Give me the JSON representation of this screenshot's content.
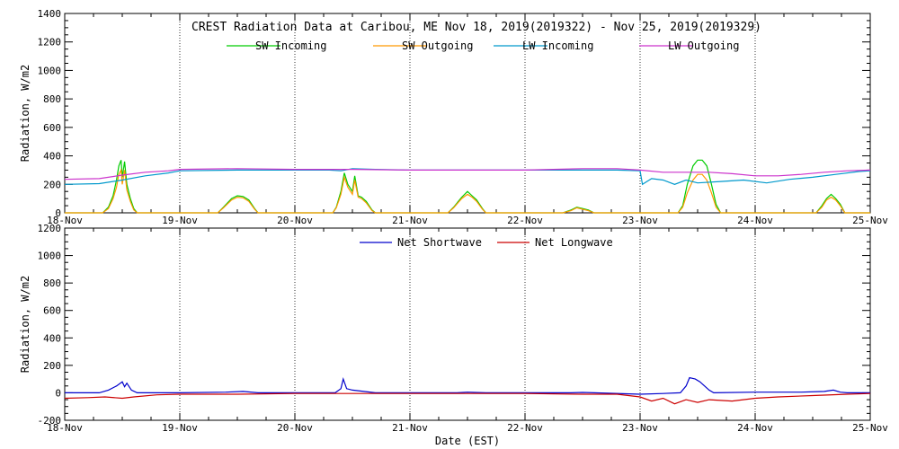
{
  "chart_data": [
    {
      "type": "line",
      "title": "CREST Radiation Data at Caribou, ME   Nov 18, 2019(2019322) - Nov 25, 2019(2019329)",
      "ylabel": "Radiation, W/m2",
      "xlabel": "",
      "ylim": [
        0,
        1400
      ],
      "yticks": [
        0,
        200,
        400,
        600,
        800,
        1000,
        1200,
        1400
      ],
      "xlim": [
        0,
        7
      ],
      "xtick_labels": [
        "18-Nov",
        "19-Nov",
        "20-Nov",
        "21-Nov",
        "22-Nov",
        "23-Nov",
        "24-Nov",
        "25-Nov"
      ],
      "grid": true,
      "legend_position": "top",
      "series": [
        {
          "name": "SW Incoming",
          "color": "#00cc00",
          "points": [
            [
              0.0,
              0
            ],
            [
              0.33,
              0
            ],
            [
              0.38,
              40
            ],
            [
              0.42,
              120
            ],
            [
              0.45,
              230
            ],
            [
              0.47,
              330
            ],
            [
              0.49,
              370
            ],
            [
              0.5,
              250
            ],
            [
              0.52,
              360
            ],
            [
              0.54,
              200
            ],
            [
              0.57,
              100
            ],
            [
              0.6,
              30
            ],
            [
              0.63,
              0
            ],
            [
              1.0,
              0
            ],
            [
              1.33,
              0
            ],
            [
              1.38,
              40
            ],
            [
              1.45,
              100
            ],
            [
              1.5,
              120
            ],
            [
              1.55,
              115
            ],
            [
              1.6,
              90
            ],
            [
              1.65,
              30
            ],
            [
              1.68,
              0
            ],
            [
              2.33,
              0
            ],
            [
              2.36,
              40
            ],
            [
              2.4,
              150
            ],
            [
              2.43,
              280
            ],
            [
              2.46,
              200
            ],
            [
              2.5,
              150
            ],
            [
              2.52,
              260
            ],
            [
              2.55,
              120
            ],
            [
              2.58,
              110
            ],
            [
              2.62,
              80
            ],
            [
              2.67,
              20
            ],
            [
              2.7,
              0
            ],
            [
              3.33,
              0
            ],
            [
              3.38,
              40
            ],
            [
              3.45,
              110
            ],
            [
              3.5,
              150
            ],
            [
              3.54,
              120
            ],
            [
              3.58,
              90
            ],
            [
              3.63,
              30
            ],
            [
              3.66,
              0
            ],
            [
              4.33,
              0
            ],
            [
              4.4,
              20
            ],
            [
              4.45,
              40
            ],
            [
              4.5,
              30
            ],
            [
              4.55,
              20
            ],
            [
              4.6,
              0
            ],
            [
              5.33,
              0
            ],
            [
              5.37,
              50
            ],
            [
              5.41,
              200
            ],
            [
              5.46,
              330
            ],
            [
              5.5,
              370
            ],
            [
              5.54,
              370
            ],
            [
              5.58,
              330
            ],
            [
              5.62,
              200
            ],
            [
              5.66,
              60
            ],
            [
              5.7,
              0
            ],
            [
              6.53,
              0
            ],
            [
              6.58,
              50
            ],
            [
              6.62,
              100
            ],
            [
              6.66,
              130
            ],
            [
              6.7,
              100
            ],
            [
              6.74,
              60
            ],
            [
              6.78,
              0
            ],
            [
              7.0,
              0
            ]
          ]
        },
        {
          "name": "SW Outgoing",
          "color": "#ff9900",
          "points": [
            [
              0.0,
              0
            ],
            [
              0.33,
              0
            ],
            [
              0.38,
              30
            ],
            [
              0.42,
              100
            ],
            [
              0.45,
              180
            ],
            [
              0.47,
              270
            ],
            [
              0.49,
              300
            ],
            [
              0.5,
              200
            ],
            [
              0.52,
              300
            ],
            [
              0.54,
              160
            ],
            [
              0.57,
              80
            ],
            [
              0.6,
              20
            ],
            [
              0.63,
              0
            ],
            [
              1.0,
              0
            ],
            [
              1.33,
              0
            ],
            [
              1.38,
              35
            ],
            [
              1.45,
              90
            ],
            [
              1.5,
              110
            ],
            [
              1.55,
              105
            ],
            [
              1.6,
              80
            ],
            [
              1.65,
              25
            ],
            [
              1.68,
              0
            ],
            [
              2.33,
              0
            ],
            [
              2.36,
              35
            ],
            [
              2.4,
              130
            ],
            [
              2.43,
              250
            ],
            [
              2.46,
              180
            ],
            [
              2.5,
              130
            ],
            [
              2.52,
              230
            ],
            [
              2.55,
              110
            ],
            [
              2.58,
              100
            ],
            [
              2.62,
              70
            ],
            [
              2.67,
              15
            ],
            [
              2.7,
              0
            ],
            [
              3.33,
              0
            ],
            [
              3.38,
              35
            ],
            [
              3.45,
              100
            ],
            [
              3.5,
              130
            ],
            [
              3.54,
              110
            ],
            [
              3.58,
              80
            ],
            [
              3.63,
              25
            ],
            [
              3.66,
              0
            ],
            [
              4.33,
              0
            ],
            [
              4.4,
              15
            ],
            [
              4.45,
              35
            ],
            [
              4.5,
              25
            ],
            [
              4.55,
              15
            ],
            [
              4.6,
              0
            ],
            [
              5.33,
              0
            ],
            [
              5.37,
              40
            ],
            [
              5.41,
              140
            ],
            [
              5.46,
              230
            ],
            [
              5.5,
              270
            ],
            [
              5.54,
              270
            ],
            [
              5.58,
              230
            ],
            [
              5.62,
              140
            ],
            [
              5.66,
              40
            ],
            [
              5.7,
              0
            ],
            [
              6.53,
              0
            ],
            [
              6.58,
              40
            ],
            [
              6.62,
              90
            ],
            [
              6.66,
              110
            ],
            [
              6.7,
              90
            ],
            [
              6.74,
              50
            ],
            [
              6.78,
              0
            ],
            [
              7.0,
              0
            ]
          ]
        },
        {
          "name": "LW Incoming",
          "color": "#0099cc",
          "points": [
            [
              0.0,
              200
            ],
            [
              0.3,
              205
            ],
            [
              0.5,
              230
            ],
            [
              0.7,
              260
            ],
            [
              0.9,
              280
            ],
            [
              1.0,
              295
            ],
            [
              1.5,
              300
            ],
            [
              2.0,
              300
            ],
            [
              2.3,
              300
            ],
            [
              2.4,
              295
            ],
            [
              2.5,
              310
            ],
            [
              2.7,
              305
            ],
            [
              3.0,
              300
            ],
            [
              3.5,
              300
            ],
            [
              4.0,
              300
            ],
            [
              4.5,
              300
            ],
            [
              4.8,
              300
            ],
            [
              5.0,
              295
            ],
            [
              5.02,
              200
            ],
            [
              5.1,
              240
            ],
            [
              5.2,
              230
            ],
            [
              5.3,
              200
            ],
            [
              5.4,
              230
            ],
            [
              5.5,
              210
            ],
            [
              5.7,
              220
            ],
            [
              5.9,
              230
            ],
            [
              6.1,
              210
            ],
            [
              6.3,
              235
            ],
            [
              6.5,
              250
            ],
            [
              6.7,
              270
            ],
            [
              6.9,
              290
            ],
            [
              7.0,
              295
            ]
          ]
        },
        {
          "name": "LW Outgoing",
          "color": "#cc33cc",
          "points": [
            [
              0.0,
              235
            ],
            [
              0.3,
              240
            ],
            [
              0.5,
              265
            ],
            [
              0.7,
              285
            ],
            [
              0.9,
              295
            ],
            [
              1.0,
              305
            ],
            [
              1.5,
              310
            ],
            [
              2.0,
              305
            ],
            [
              2.5,
              305
            ],
            [
              3.0,
              300
            ],
            [
              3.5,
              300
            ],
            [
              4.0,
              300
            ],
            [
              4.5,
              310
            ],
            [
              4.8,
              310
            ],
            [
              5.0,
              300
            ],
            [
              5.2,
              285
            ],
            [
              5.4,
              285
            ],
            [
              5.6,
              285
            ],
            [
              5.8,
              275
            ],
            [
              6.0,
              260
            ],
            [
              6.2,
              260
            ],
            [
              6.4,
              270
            ],
            [
              6.6,
              285
            ],
            [
              6.8,
              295
            ],
            [
              7.0,
              300
            ]
          ]
        }
      ]
    },
    {
      "type": "line",
      "title": "",
      "ylabel": "Radiation, W/m2",
      "xlabel": "Date (EST)",
      "ylim": [
        -200,
        1200
      ],
      "yticks": [
        -200,
        0,
        200,
        400,
        600,
        800,
        1000,
        1200
      ],
      "xlim": [
        0,
        7
      ],
      "xtick_labels": [
        "18-Nov",
        "19-Nov",
        "20-Nov",
        "21-Nov",
        "22-Nov",
        "23-Nov",
        "24-Nov",
        "25-Nov"
      ],
      "grid": true,
      "legend_position": "top",
      "series": [
        {
          "name": "Net Shortwave",
          "color": "#0000cc",
          "points": [
            [
              0.0,
              0
            ],
            [
              0.3,
              0
            ],
            [
              0.38,
              20
            ],
            [
              0.45,
              50
            ],
            [
              0.5,
              80
            ],
            [
              0.52,
              45
            ],
            [
              0.54,
              70
            ],
            [
              0.58,
              20
            ],
            [
              0.63,
              0
            ],
            [
              1.0,
              0
            ],
            [
              1.4,
              5
            ],
            [
              1.55,
              10
            ],
            [
              1.68,
              0
            ],
            [
              2.35,
              0
            ],
            [
              2.4,
              30
            ],
            [
              2.42,
              100
            ],
            [
              2.45,
              30
            ],
            [
              2.5,
              20
            ],
            [
              2.55,
              15
            ],
            [
              2.7,
              0
            ],
            [
              3.4,
              0
            ],
            [
              3.5,
              5
            ],
            [
              3.66,
              0
            ],
            [
              4.4,
              0
            ],
            [
              4.5,
              3
            ],
            [
              4.6,
              0
            ],
            [
              5.0,
              -10
            ],
            [
              5.2,
              -5
            ],
            [
              5.35,
              0
            ],
            [
              5.4,
              50
            ],
            [
              5.43,
              110
            ],
            [
              5.48,
              100
            ],
            [
              5.52,
              80
            ],
            [
              5.56,
              50
            ],
            [
              5.6,
              20
            ],
            [
              5.64,
              0
            ],
            [
              6.0,
              5
            ],
            [
              6.4,
              5
            ],
            [
              6.6,
              10
            ],
            [
              6.68,
              20
            ],
            [
              6.74,
              5
            ],
            [
              6.8,
              0
            ],
            [
              7.0,
              0
            ]
          ]
        },
        {
          "name": "Net Longwave",
          "color": "#cc0000",
          "points": [
            [
              0.0,
              -40
            ],
            [
              0.2,
              -35
            ],
            [
              0.35,
              -30
            ],
            [
              0.5,
              -40
            ],
            [
              0.6,
              -30
            ],
            [
              0.8,
              -15
            ],
            [
              1.0,
              -10
            ],
            [
              1.5,
              -10
            ],
            [
              2.0,
              -5
            ],
            [
              2.5,
              -5
            ],
            [
              3.0,
              -5
            ],
            [
              3.5,
              -5
            ],
            [
              4.0,
              -5
            ],
            [
              4.5,
              -10
            ],
            [
              4.8,
              -10
            ],
            [
              5.0,
              -30
            ],
            [
              5.1,
              -60
            ],
            [
              5.2,
              -40
            ],
            [
              5.3,
              -80
            ],
            [
              5.4,
              -50
            ],
            [
              5.5,
              -70
            ],
            [
              5.6,
              -50
            ],
            [
              5.8,
              -60
            ],
            [
              6.0,
              -40
            ],
            [
              6.2,
              -30
            ],
            [
              6.5,
              -20
            ],
            [
              6.8,
              -10
            ],
            [
              7.0,
              -5
            ]
          ]
        }
      ]
    }
  ]
}
